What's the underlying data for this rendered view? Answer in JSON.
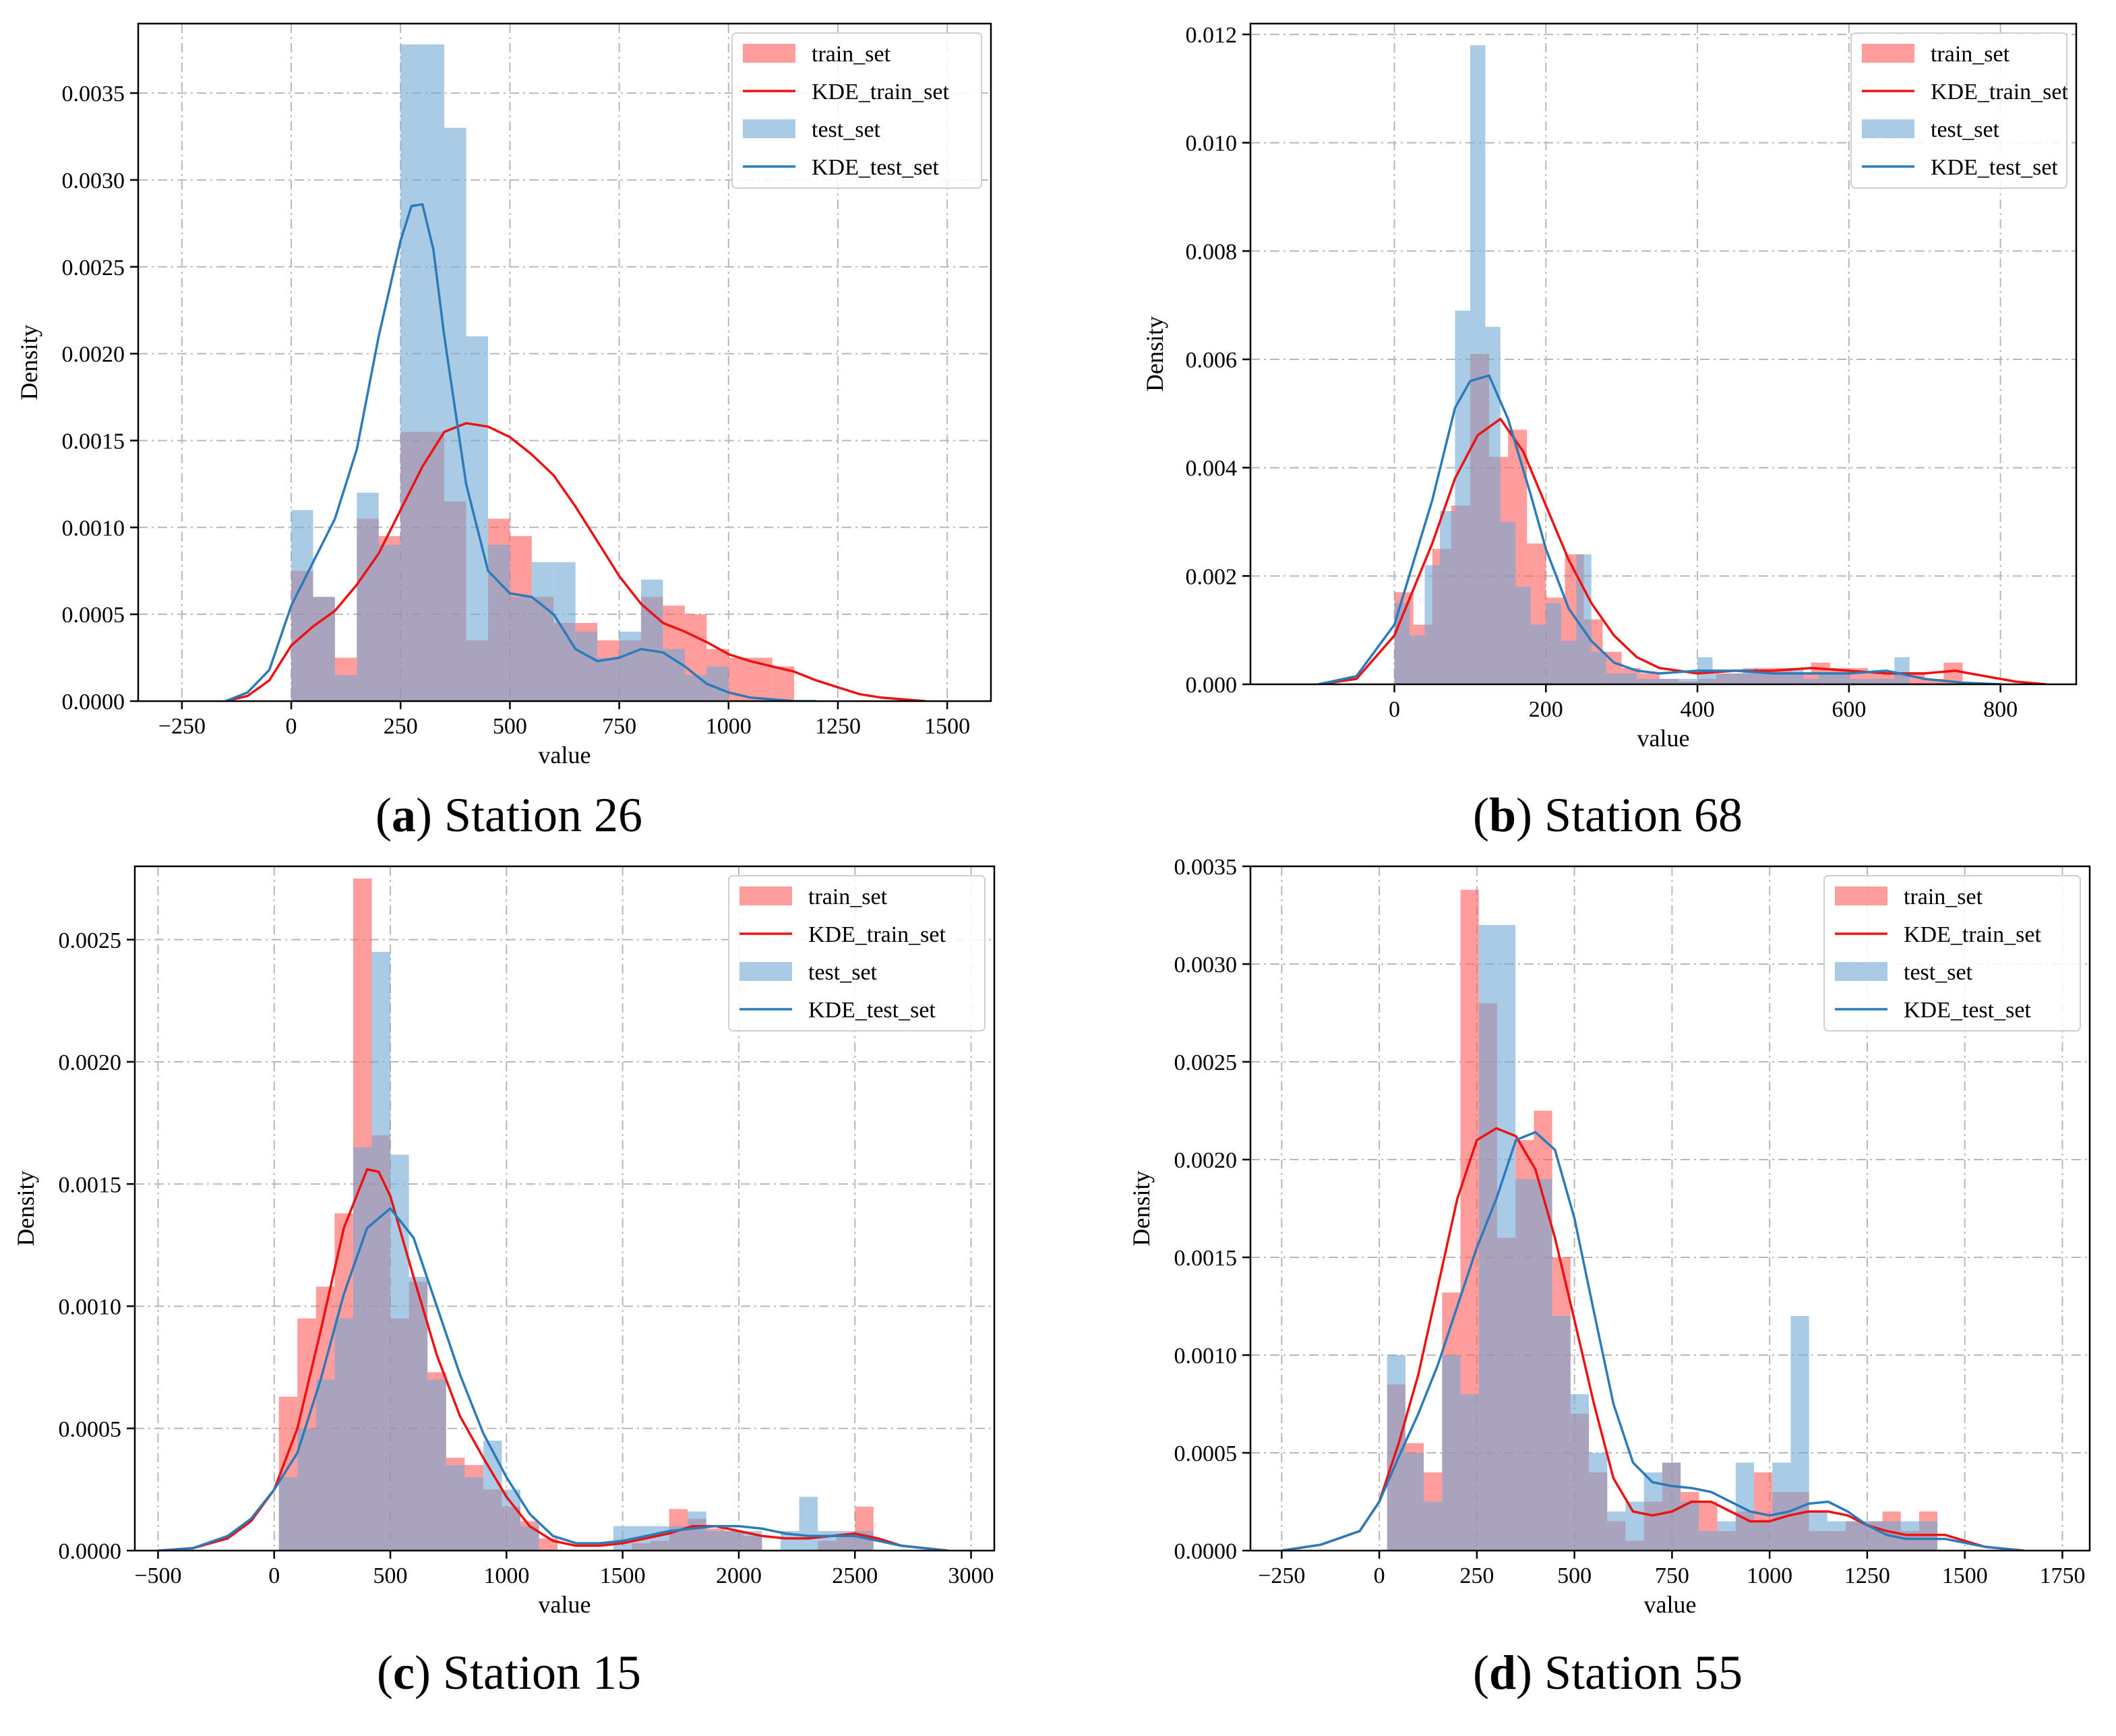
{
  "colors": {
    "train": "#ff5a5a",
    "train_line": "#ee1111",
    "test": "#6fa8d3",
    "test_line": "#2b7bba",
    "grid": "#b8b8b8"
  },
  "chart_data": [
    {
      "id": "a",
      "caption": {
        "letter": "a",
        "text": "Station 26"
      },
      "type": "histogram+kde",
      "xlabel": "value",
      "ylabel": "Density",
      "xlim": [
        -350,
        1600
      ],
      "ylim": [
        0,
        0.0039
      ],
      "xticks": [
        -250,
        0,
        250,
        500,
        750,
        1000,
        1250,
        1500
      ],
      "xtick_labels": [
        "−250",
        "0",
        "250",
        "500",
        "750",
        "1000",
        "1250",
        "1500"
      ],
      "yticks": [
        0,
        0.0005,
        0.001,
        0.0015,
        0.002,
        0.0025,
        0.003,
        0.0035
      ],
      "ytick_labels": [
        "0.0000",
        "0.0005",
        "0.0010",
        "0.0015",
        "0.0020",
        "0.0025",
        "0.0030",
        "0.0035"
      ],
      "legend": [
        "train_set",
        "KDE_train_set",
        "test_set",
        "KDE_test_set"
      ],
      "train_hist": {
        "start": 0,
        "width": 50,
        "values": [
          0.00075,
          0.0006,
          0.00025,
          0.00105,
          0.00095,
          0.00155,
          0.00155,
          0.00115,
          0.00035,
          0.00105,
          0.00095,
          0.0006,
          0.00045,
          0.00045,
          0.00035,
          0.00035,
          0.0006,
          0.00055,
          0.0005,
          0.0003,
          0.00025,
          0.00025,
          0.0002
        ]
      },
      "test_hist": {
        "start": 0,
        "width": 50,
        "values": [
          0.0011,
          0.0006,
          0.00015,
          0.0012,
          0.0009,
          0.00378,
          0.00378,
          0.0033,
          0.0021,
          0.0009,
          0.0006,
          0.0008,
          0.0008,
          0.0004,
          0.00025,
          0.0004,
          0.0007,
          0.0003,
          0.00015,
          0.0002
        ]
      },
      "train_kde": {
        "x": [
          -150,
          -100,
          -50,
          0,
          50,
          100,
          150,
          200,
          250,
          300,
          350,
          400,
          450,
          500,
          550,
          600,
          650,
          700,
          750,
          800,
          850,
          900,
          950,
          1000,
          1050,
          1100,
          1150,
          1200,
          1250,
          1300,
          1350,
          1400,
          1450
        ],
        "y": [
          0,
          3e-05,
          0.00012,
          0.00032,
          0.00043,
          0.00052,
          0.00067,
          0.00085,
          0.0011,
          0.00135,
          0.00155,
          0.0016,
          0.00158,
          0.00152,
          0.00142,
          0.0013,
          0.00112,
          0.00092,
          0.00072,
          0.00056,
          0.00045,
          0.0004,
          0.00034,
          0.00027,
          0.00023,
          0.0002,
          0.00017,
          0.00012,
          8e-05,
          4e-05,
          2e-05,
          1e-05,
          0
        ]
      },
      "test_kde": {
        "x": [
          -150,
          -100,
          -50,
          0,
          50,
          100,
          150,
          200,
          250,
          275,
          300,
          325,
          350,
          400,
          450,
          500,
          550,
          600,
          650,
          700,
          750,
          800,
          850,
          900,
          950,
          1000,
          1050,
          1100,
          1150,
          1200
        ],
        "y": [
          0,
          5e-05,
          0.00018,
          0.00055,
          0.0008,
          0.00105,
          0.00145,
          0.0021,
          0.00265,
          0.00285,
          0.00286,
          0.0026,
          0.0021,
          0.00125,
          0.00075,
          0.00062,
          0.0006,
          0.0005,
          0.0003,
          0.00023,
          0.00025,
          0.0003,
          0.00028,
          0.0002,
          0.0001,
          5e-05,
          2e-05,
          1e-05,
          0,
          0
        ]
      }
    },
    {
      "id": "b",
      "caption": {
        "letter": "b",
        "text": "Station 68"
      },
      "type": "histogram+kde",
      "xlabel": "value",
      "ylabel": "Density",
      "xlim": [
        -190,
        900
      ],
      "ylim": [
        0,
        0.0122
      ],
      "xticks": [
        0,
        200,
        400,
        600,
        800
      ],
      "xtick_labels": [
        "0",
        "200",
        "400",
        "600",
        "800"
      ],
      "yticks": [
        0,
        0.002,
        0.004,
        0.006,
        0.008,
        0.01,
        0.012
      ],
      "ytick_labels": [
        "0.000",
        "0.002",
        "0.004",
        "0.006",
        "0.008",
        "0.010",
        "0.012"
      ],
      "legend": [
        "train_set",
        "KDE_train_set",
        "test_set",
        "KDE_test_set"
      ],
      "train_hist": {
        "start": 0,
        "width": 25,
        "values": [
          0.0017,
          0.0011,
          0.0025,
          0.0033,
          0.0061,
          0.0042,
          0.0047,
          0.0026,
          0.0016,
          0.0024,
          0.0012,
          0.0006,
          0.0003,
          0.0002,
          0.0001,
          5e-05,
          0.0001,
          0.0002,
          0.0002,
          0.0003,
          0.0003,
          0.0002,
          0.0004,
          0.0003,
          0.0003,
          0.0002,
          0.0002,
          0.0002,
          0.0001,
          0.0004
        ]
      },
      "test_hist": {
        "start": 0,
        "width": 20,
        "values": [
          0.0015,
          0.0009,
          0.0022,
          0.0032,
          0.0069,
          0.0118,
          0.0066,
          0.003,
          0.0018,
          0.0011,
          0.0015,
          0.0008,
          0.0024,
          0.0006,
          0.0002,
          0.0002,
          0.0001,
          0.0001,
          0.0001,
          0.0001,
          0.0005,
          0.0002,
          0.0002,
          0.0003,
          0.0002,
          0.0002,
          0.0003,
          0.0001,
          0.0002,
          0.0002,
          0.0001,
          0.0001,
          0.0001,
          0.0005
        ]
      },
      "train_kde": {
        "x": [
          -100,
          -50,
          0,
          50,
          80,
          110,
          140,
          170,
          200,
          230,
          260,
          290,
          320,
          350,
          400,
          450,
          500,
          550,
          600,
          650,
          700,
          740,
          780,
          820,
          860
        ],
        "y": [
          0,
          0.0001,
          0.0009,
          0.0026,
          0.0038,
          0.0046,
          0.0049,
          0.0043,
          0.0033,
          0.0023,
          0.0015,
          0.0009,
          0.0005,
          0.0003,
          0.0002,
          0.00025,
          0.00025,
          0.0003,
          0.00025,
          0.0002,
          0.0002,
          0.00025,
          0.00015,
          5e-05,
          0
        ]
      },
      "test_kde": {
        "x": [
          -100,
          -50,
          0,
          50,
          80,
          100,
          125,
          150,
          180,
          200,
          230,
          260,
          290,
          320,
          350,
          400,
          450,
          500,
          550,
          600,
          650,
          700,
          750,
          800
        ],
        "y": [
          0,
          0.00015,
          0.0011,
          0.0034,
          0.0051,
          0.0056,
          0.0057,
          0.0049,
          0.0035,
          0.0025,
          0.0014,
          0.0008,
          0.0004,
          0.00025,
          0.0002,
          0.00025,
          0.00025,
          0.0002,
          0.0002,
          0.0002,
          0.00025,
          0.0001,
          3e-05,
          0
        ]
      }
    },
    {
      "id": "c",
      "caption": {
        "letter": "c",
        "text": "Station 15"
      },
      "type": "histogram+kde",
      "xlabel": "value",
      "ylabel": "Density",
      "xlim": [
        -600,
        3100
      ],
      "ylim": [
        0,
        0.0028
      ],
      "xticks": [
        -500,
        0,
        500,
        1000,
        1500,
        2000,
        2500,
        3000
      ],
      "xtick_labels": [
        "−500",
        "0",
        "500",
        "1000",
        "1500",
        "2000",
        "2500",
        "3000"
      ],
      "yticks": [
        0,
        0.0005,
        0.001,
        0.0015,
        0.002,
        0.0025
      ],
      "ytick_labels": [
        "0.0000",
        "0.0005",
        "0.0010",
        "0.0015",
        "0.0020",
        "0.0025"
      ],
      "legend": [
        "train_set",
        "KDE_train_set",
        "test_set",
        "KDE_test_set"
      ],
      "train_hist": {
        "start": 20,
        "width": 80,
        "values": [
          0.00063,
          0.00095,
          0.00108,
          0.00138,
          0.00275,
          0.0017,
          0.00095,
          0.0011,
          0.00073,
          0.00038,
          0.00035,
          0.00025,
          0.00018,
          0.00012,
          5e-05,
          0,
          0,
          0,
          0,
          3e-05,
          4e-05,
          0.00017,
          0.00013,
          9e-05,
          8e-05,
          6e-05,
          0,
          0,
          0,
          4e-05,
          6e-05,
          0.00018
        ]
      },
      "test_hist": {
        "start": 20,
        "width": 80,
        "values": [
          0.0003,
          0.0005,
          0.0007,
          0.00095,
          0.00165,
          0.00245,
          0.00162,
          0.00112,
          0.0007,
          0.00035,
          0.0003,
          0.00045,
          0.00025,
          0.0001,
          0,
          0,
          0,
          0,
          0.0001,
          0.0001,
          0.0001,
          0.0001,
          0.00016,
          8e-05,
          8e-05,
          8e-05,
          0,
          8e-05,
          0.00022,
          8e-05,
          8e-05,
          8e-05
        ]
      },
      "train_kde": {
        "x": [
          -500,
          -350,
          -200,
          -100,
          0,
          100,
          200,
          300,
          400,
          450,
          500,
          600,
          700,
          800,
          900,
          1000,
          1100,
          1200,
          1300,
          1400,
          1500,
          1600,
          1700,
          1800,
          1900,
          2000,
          2100,
          2200,
          2300,
          2400,
          2500,
          2600,
          2700,
          2800,
          2900
        ],
        "y": [
          0,
          1e-05,
          5e-05,
          0.00012,
          0.00025,
          0.0005,
          0.0009,
          0.00132,
          0.00156,
          0.00155,
          0.00145,
          0.00112,
          0.0008,
          0.00055,
          0.00038,
          0.00022,
          0.0001,
          4e-05,
          2e-05,
          2e-05,
          3e-05,
          5e-05,
          7e-05,
          0.0001,
          0.0001,
          8e-05,
          6e-05,
          5e-05,
          5e-05,
          6e-05,
          7e-05,
          5e-05,
          2e-05,
          1e-05,
          0
        ]
      },
      "test_kde": {
        "x": [
          -500,
          -350,
          -200,
          -100,
          0,
          100,
          200,
          300,
          400,
          500,
          600,
          700,
          800,
          900,
          1000,
          1100,
          1200,
          1300,
          1400,
          1500,
          1600,
          1700,
          1800,
          1900,
          2000,
          2100,
          2200,
          2300,
          2400,
          2500,
          2600,
          2700,
          2800,
          2900
        ],
        "y": [
          0,
          1e-05,
          6e-05,
          0.00013,
          0.00025,
          0.0004,
          0.0007,
          0.00105,
          0.00132,
          0.0014,
          0.00128,
          0.001,
          0.00072,
          0.00048,
          0.0003,
          0.00015,
          6e-05,
          3e-05,
          3e-05,
          4e-05,
          6e-05,
          8e-05,
          9e-05,
          0.0001,
          0.0001,
          9e-05,
          7e-05,
          6e-05,
          6e-05,
          6e-05,
          4e-05,
          2e-05,
          1e-05,
          0
        ]
      }
    },
    {
      "id": "d",
      "caption": {
        "letter": "d",
        "text": "Station 55"
      },
      "type": "histogram+kde",
      "xlabel": "value",
      "ylabel": "Density",
      "xlim": [
        -330,
        1820
      ],
      "ylim": [
        0,
        0.0035
      ],
      "xticks": [
        -250,
        0,
        250,
        500,
        750,
        1000,
        1250,
        1500,
        1750
      ],
      "xtick_labels": [
        "−250",
        "0",
        "250",
        "500",
        "750",
        "1000",
        "1250",
        "1500",
        "1750"
      ],
      "yticks": [
        0,
        0.0005,
        0.001,
        0.0015,
        0.002,
        0.0025,
        0.003,
        0.0035
      ],
      "ytick_labels": [
        "0.0000",
        "0.0005",
        "0.0010",
        "0.0015",
        "0.0020",
        "0.0025",
        "0.0030",
        "0.0035"
      ],
      "legend": [
        "train_set",
        "KDE_train_set",
        "test_set",
        "KDE_test_set"
      ],
      "train_hist": {
        "start": 20,
        "width": 47,
        "values": [
          0.00085,
          0.00055,
          0.0004,
          0.00132,
          0.00338,
          0.0028,
          0.0016,
          0.0021,
          0.00225,
          0.0015,
          0.0007,
          0.0004,
          0.00015,
          5e-05,
          0.00025,
          0.00045,
          0.0003,
          0.00025,
          0.0001,
          0.0002,
          0.0004,
          0.0003,
          0.0003,
          0.0001,
          0.0001,
          0.00015,
          0.00015,
          0.0002,
          0.0001,
          0.0002
        ]
      },
      "test_hist": {
        "start": 20,
        "width": 47,
        "values": [
          0.001,
          0.0005,
          0.00025,
          0.001,
          0.0008,
          0.0032,
          0.0032,
          0.0019,
          0.0019,
          0.0012,
          0.0008,
          0.0005,
          0.0002,
          0.00025,
          0.0004,
          0.00045,
          0.00025,
          0.0001,
          0.00015,
          0.00045,
          0.00015,
          0.00045,
          0.0012,
          0.0002,
          0.00015,
          0.00015,
          0.00015,
          0.00015,
          0.00015,
          0.00015
        ]
      },
      "train_kde": {
        "x": [
          -250,
          -150,
          -50,
          0,
          50,
          100,
          150,
          200,
          250,
          300,
          350,
          400,
          450,
          500,
          550,
          600,
          650,
          700,
          750,
          800,
          850,
          900,
          950,
          1000,
          1050,
          1100,
          1150,
          1200,
          1250,
          1300,
          1350,
          1400,
          1450,
          1500,
          1550,
          1600,
          1650
        ],
        "y": [
          0,
          3e-05,
          0.0001,
          0.00025,
          0.00055,
          0.0009,
          0.00135,
          0.0018,
          0.0021,
          0.00216,
          0.00212,
          0.00195,
          0.0016,
          0.00118,
          0.00075,
          0.00037,
          0.0002,
          0.00018,
          0.0002,
          0.00025,
          0.00025,
          0.0002,
          0.00015,
          0.00015,
          0.00018,
          0.0002,
          0.0002,
          0.00018,
          0.00013,
          0.0001,
          8e-05,
          8e-05,
          8e-05,
          5e-05,
          2e-05,
          1e-05,
          0
        ]
      },
      "test_kde": {
        "x": [
          -250,
          -150,
          -50,
          0,
          50,
          100,
          150,
          200,
          250,
          300,
          350,
          400,
          450,
          500,
          550,
          600,
          650,
          700,
          750,
          800,
          850,
          900,
          950,
          1000,
          1050,
          1100,
          1150,
          1200,
          1250,
          1300,
          1350,
          1400,
          1450,
          1500,
          1550,
          1600,
          1650
        ],
        "y": [
          0,
          3e-05,
          0.0001,
          0.00025,
          0.00048,
          0.0007,
          0.00095,
          0.00125,
          0.00155,
          0.0018,
          0.0021,
          0.00214,
          0.00205,
          0.0017,
          0.00122,
          0.00075,
          0.00045,
          0.00035,
          0.00033,
          0.00032,
          0.0003,
          0.00025,
          0.0002,
          0.00018,
          0.0002,
          0.00024,
          0.00025,
          0.0002,
          0.00013,
          8e-05,
          6e-05,
          6e-05,
          6e-05,
          4e-05,
          2e-05,
          1e-05,
          0
        ]
      }
    }
  ]
}
